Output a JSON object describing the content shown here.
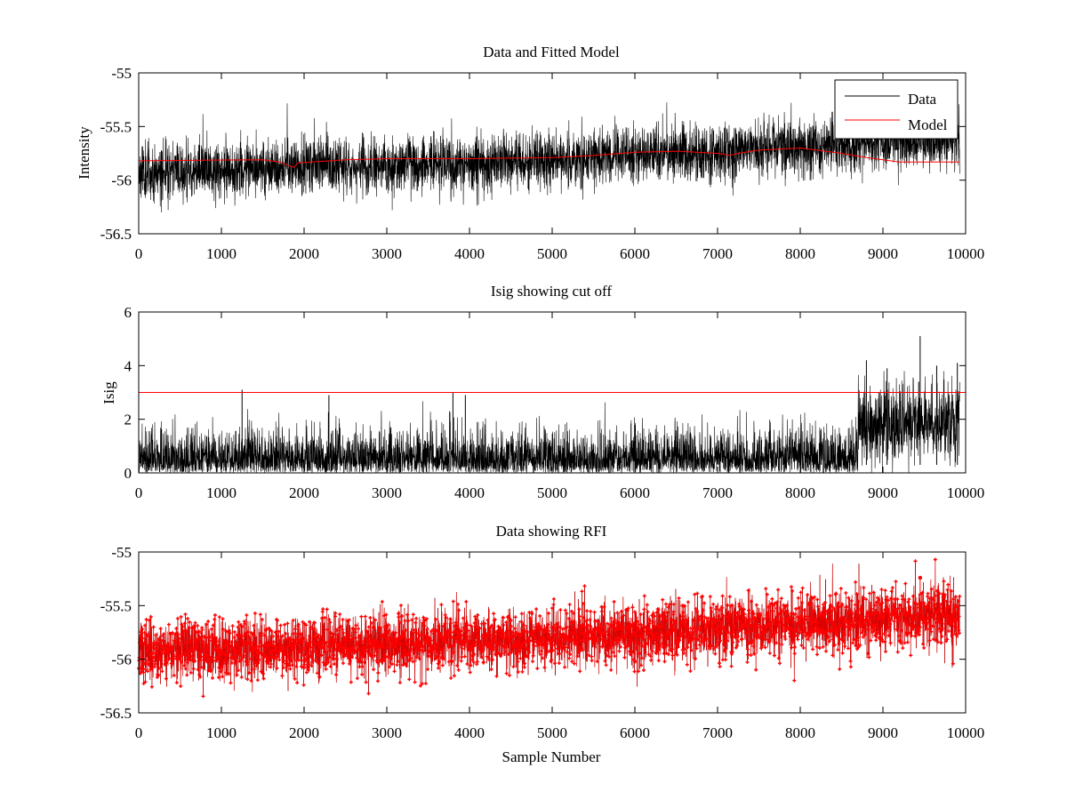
{
  "figure": {
    "background": "#ffffff",
    "series_colors": {
      "Data": "#000000",
      "Model": "#ff0000",
      "cutoff": "#ff0000",
      "rfi": "#ff0000"
    }
  },
  "chart_data": [
    {
      "type": "line",
      "title": "Data and Fitted Model",
      "xlabel": "",
      "ylabel": "Intensity",
      "xlim": [
        0,
        10000
      ],
      "ylim": [
        -56.5,
        -55
      ],
      "xticks": [
        "0",
        "1000",
        "2000",
        "3000",
        "4000",
        "5000",
        "6000",
        "7000",
        "8000",
        "9000",
        "10000"
      ],
      "yticks": [
        "-55",
        "-55.5",
        "-56",
        "-56.5"
      ],
      "legend": {
        "placement": "top-right",
        "entries": [
          "Data",
          "Model"
        ]
      },
      "series": [
        {
          "name": "Data",
          "color": "#000000",
          "sample_count": 9930,
          "noise_spread": 0.13,
          "trend": {
            "x": [
              0,
              2000,
              4000,
              5000,
              6000,
              7000,
              8000,
              9000,
              9930
            ],
            "y": [
              -55.92,
              -55.88,
              -55.85,
              -55.82,
              -55.76,
              -55.73,
              -55.68,
              -55.65,
              -55.62
            ]
          }
        },
        {
          "name": "Model",
          "color": "#ff0000",
          "x": [
            0,
            1500,
            1700,
            1800,
            1880,
            1920,
            2500,
            3000,
            4000,
            5000,
            5500,
            6000,
            6500,
            7000,
            7150,
            7250,
            7500,
            8000,
            8500,
            8800,
            9200,
            9930
          ],
          "y": [
            -55.82,
            -55.81,
            -55.83,
            -55.86,
            -55.88,
            -55.84,
            -55.81,
            -55.8,
            -55.8,
            -55.79,
            -55.77,
            -55.74,
            -55.73,
            -55.75,
            -55.77,
            -55.75,
            -55.72,
            -55.7,
            -55.75,
            -55.79,
            -55.83,
            -55.83
          ]
        }
      ]
    },
    {
      "type": "line",
      "title": "Isig showing cut off",
      "xlabel": "",
      "ylabel": "Isig",
      "xlim": [
        0,
        10000
      ],
      "ylim": [
        0,
        6
      ],
      "xticks": [
        "0",
        "1000",
        "2000",
        "3000",
        "4000",
        "5000",
        "6000",
        "7000",
        "8000",
        "9000",
        "10000"
      ],
      "yticks": [
        "0",
        "2",
        "4",
        "6"
      ],
      "cutoff": 3,
      "series": [
        {
          "color": "#000000",
          "sample_count": 9930,
          "typical_max": 2.5,
          "peaks": {
            "x": [
              1250,
              2300,
              3800,
              3950,
              8800,
              9050,
              9450,
              9650,
              9900
            ],
            "y": [
              3.1,
              2.9,
              3.0,
              2.9,
              4.2,
              3.9,
              5.1,
              4.0,
              4.1
            ]
          },
          "elevated_region": {
            "x": [
              8700,
              9930
            ],
            "mean": 1.8
          }
        }
      ]
    },
    {
      "type": "line",
      "title": "Data showing RFI",
      "xlabel": "Sample Number",
      "ylabel": "",
      "xlim": [
        0,
        10000
      ],
      "ylim": [
        -56.5,
        -55
      ],
      "xticks": [
        "0",
        "1000",
        "2000",
        "3000",
        "4000",
        "5000",
        "6000",
        "7000",
        "8000",
        "9000",
        "10000"
      ],
      "yticks": [
        "-55",
        "-55.5",
        "-56",
        "-56.5"
      ],
      "series": [
        {
          "color": "#ff0000",
          "marker": "dot",
          "sample_count": 9930,
          "noise_spread": 0.14,
          "trend": {
            "x": [
              0,
              2000,
              4000,
              6000,
              8000,
              9930
            ],
            "y": [
              -55.93,
              -55.88,
              -55.84,
              -55.77,
              -55.68,
              -55.6
            ]
          },
          "highest_point": {
            "x": 9450,
            "y": -55.24
          }
        }
      ]
    }
  ]
}
